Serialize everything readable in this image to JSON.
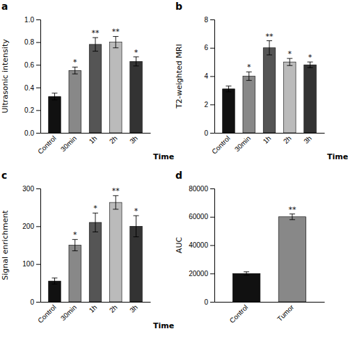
{
  "chart_data": [
    {
      "type": "bar",
      "title": "a",
      "categories": [
        "Control",
        "30min",
        "1h",
        "2h",
        "3h"
      ],
      "values": [
        0.32,
        0.55,
        0.78,
        0.8,
        0.63
      ],
      "errors": [
        0.03,
        0.03,
        0.06,
        0.05,
        0.04
      ],
      "colors": [
        "#111111",
        "#888888",
        "#555555",
        "#bbbbbb",
        "#333333"
      ],
      "ylabel": "Ultrasonic intensity",
      "xlabel": "Time",
      "ylim": [
        0,
        1.0
      ],
      "yticks": [
        {
          "value": 0.0,
          "label": "0.0"
        },
        0.2,
        0.4,
        0.6,
        0.8,
        {
          "value": 1.0,
          "label": "1.0"
        }
      ],
      "annotations": [
        {
          "x": "30min",
          "text": "*"
        },
        {
          "x": "1h",
          "text": "**"
        },
        {
          "x": "2h",
          "text": "**"
        },
        {
          "x": "3h",
          "text": "*"
        }
      ]
    },
    {
      "type": "bar",
      "title": "b",
      "categories": [
        "Control",
        "30min",
        "1h",
        "2h",
        "3h"
      ],
      "values": [
        3.1,
        4.0,
        6.0,
        5.0,
        4.8
      ],
      "errors": [
        0.2,
        0.3,
        0.5,
        0.25,
        0.2
      ],
      "colors": [
        "#111111",
        "#888888",
        "#555555",
        "#bbbbbb",
        "#333333"
      ],
      "ylabel": "T2-weighted MRI",
      "xlabel": "Time",
      "ylim": [
        0,
        8
      ],
      "yticks": [
        0,
        2,
        4,
        6,
        8
      ],
      "annotations": [
        {
          "x": "30min",
          "text": "*"
        },
        {
          "x": "1h",
          "text": "**"
        },
        {
          "x": "2h",
          "text": "*"
        },
        {
          "x": "3h",
          "text": "*"
        }
      ]
    },
    {
      "type": "bar",
      "title": "c",
      "categories": [
        "Control",
        "30min",
        "1h",
        "2h",
        "3h"
      ],
      "values": [
        55,
        150,
        210,
        263,
        200
      ],
      "errors": [
        8,
        15,
        25,
        18,
        28
      ],
      "colors": [
        "#111111",
        "#888888",
        "#555555",
        "#bbbbbb",
        "#333333"
      ],
      "ylabel": "Signal enrichment",
      "xlabel": "Time",
      "ylim": [
        0,
        300
      ],
      "yticks": [
        0,
        100,
        200,
        300
      ],
      "annotations": [
        {
          "x": "30min",
          "text": "*"
        },
        {
          "x": "1h",
          "text": "*"
        },
        {
          "x": "2h",
          "text": "**"
        },
        {
          "x": "3h",
          "text": "*"
        }
      ]
    },
    {
      "type": "bar",
      "title": "d",
      "categories": [
        "Control",
        "Tumor"
      ],
      "values": [
        20000,
        60000
      ],
      "errors": [
        1200,
        2000
      ],
      "colors": [
        "#111111",
        "#888888"
      ],
      "ylabel": "AUC",
      "ylim": [
        0,
        80000
      ],
      "yticks": [
        0,
        20000,
        40000,
        60000,
        80000
      ],
      "annotations": [
        {
          "x": "Tumor",
          "text": "**"
        }
      ]
    }
  ]
}
